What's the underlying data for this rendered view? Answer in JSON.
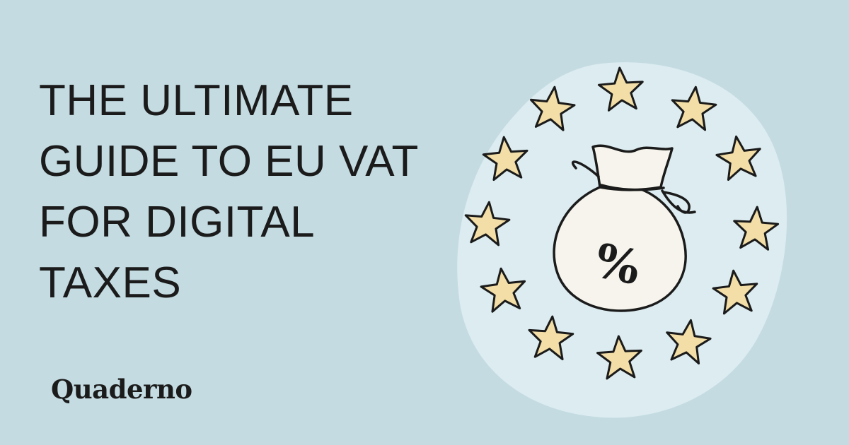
{
  "headline": {
    "lines": [
      "THE ULTIMATE",
      "GUIDE TO EU VAT",
      "FOR DIGITAL",
      "TAXES"
    ]
  },
  "brand": {
    "name": "Quaderno"
  },
  "illustration": {
    "bag_symbol": "%",
    "icons": [
      "money-bag-icon",
      "star-icon"
    ],
    "colors": {
      "background": "#c3dbe1",
      "blob": "#dcecf0",
      "bag": "#f6f4ec",
      "star": "#f2dea6",
      "ink": "#1b1b1b"
    }
  }
}
